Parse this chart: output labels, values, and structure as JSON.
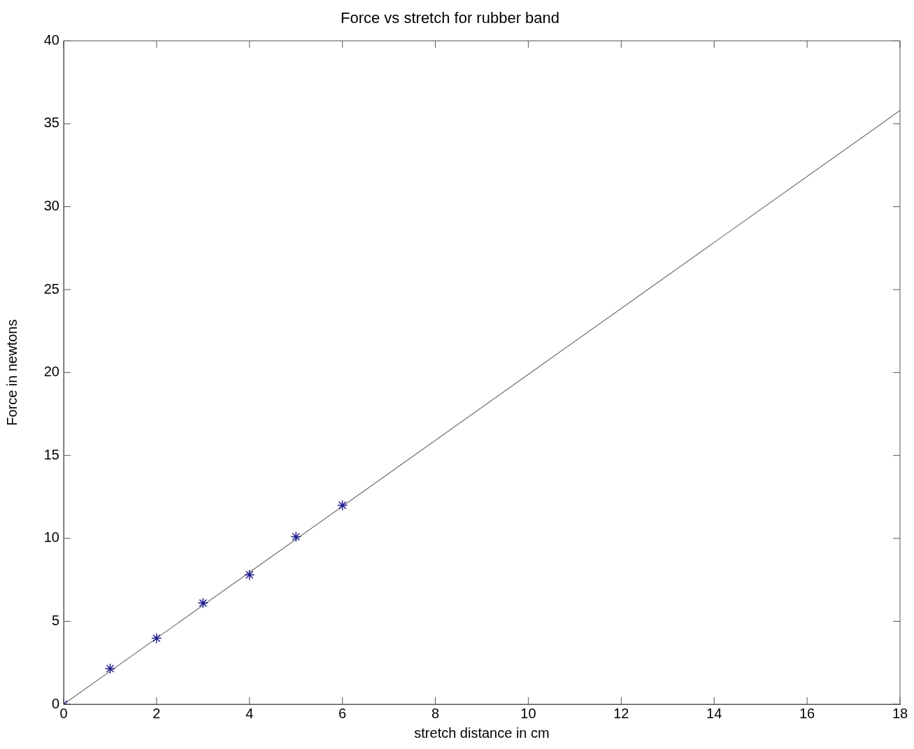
{
  "chart_data": {
    "type": "scatter",
    "title": "Force vs stretch for rubber band",
    "xlabel": "stretch distance in cm",
    "ylabel": "Force in newtons",
    "xlim": [
      0,
      18
    ],
    "xticks": [
      0,
      2,
      4,
      6,
      8,
      10,
      12,
      14,
      16,
      18
    ],
    "ylim": [
      0,
      40
    ],
    "yticks": [
      0,
      5,
      10,
      15,
      20,
      25,
      30,
      35,
      40
    ],
    "grid": false,
    "legend": false,
    "series": [
      {
        "type": "scatter",
        "color": "#1f1f8f",
        "marker": "cross",
        "x": [
          0,
          1,
          2,
          3,
          4,
          5,
          6
        ],
        "values": [
          0,
          2.15,
          3.98,
          6.1,
          7.8,
          10.1,
          12.0
        ]
      },
      {
        "type": "line",
        "color": "#707070",
        "marker": "none",
        "line_style": "solid",
        "x": [
          0,
          18
        ],
        "values": [
          0,
          35.8
        ]
      }
    ]
  }
}
